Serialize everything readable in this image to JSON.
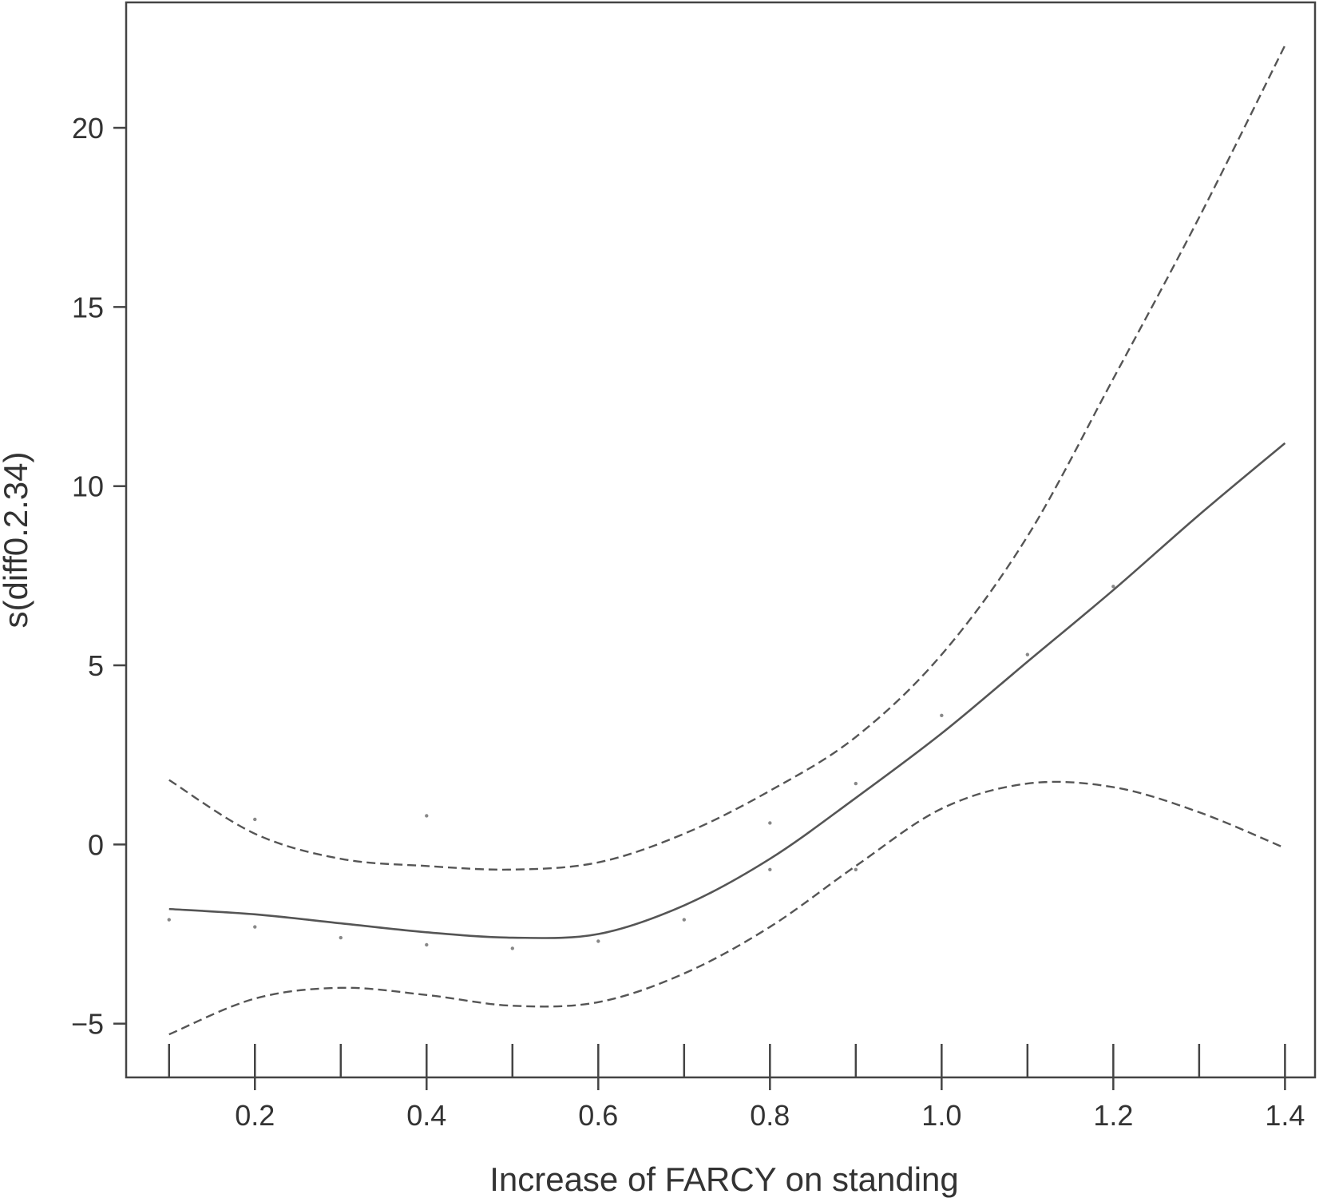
{
  "chart_data": {
    "type": "line",
    "xlabel": "Increase of FARCY on standing",
    "ylabel": "s(diff0.2.34)",
    "xlim": [
      0.05,
      1.435
    ],
    "ylim": [
      -6.5,
      23.5
    ],
    "x_ticks": [
      0.2,
      0.4,
      0.6,
      0.8,
      1.0,
      1.2,
      1.4
    ],
    "x_tick_labels": [
      "0.2",
      "0.4",
      "0.6",
      "0.8",
      "1.0",
      "1.2",
      "1.4"
    ],
    "y_ticks": [
      -5,
      0,
      5,
      10,
      15,
      20
    ],
    "y_tick_labels": [
      "−5",
      "0",
      "5",
      "10",
      "15",
      "20"
    ],
    "grid": false,
    "rug": [
      0.1,
      0.2,
      0.3,
      0.4,
      0.5,
      0.6,
      0.7,
      0.8,
      0.9,
      1.0,
      1.1,
      1.2,
      1.3,
      1.4
    ],
    "series": [
      {
        "style": "solid",
        "x": [
          0.1,
          0.2,
          0.3,
          0.4,
          0.5,
          0.6,
          0.7,
          0.8,
          0.9,
          1.0,
          1.1,
          1.2,
          1.3,
          1.4
        ],
        "y": [
          -1.8,
          -1.95,
          -2.2,
          -2.45,
          -2.6,
          -2.5,
          -1.7,
          -0.4,
          1.3,
          3.1,
          5.1,
          7.1,
          9.2,
          11.2
        ]
      },
      {
        "style": "dashed",
        "x": [
          0.1,
          0.2,
          0.3,
          0.4,
          0.5,
          0.6,
          0.7,
          0.8,
          0.9,
          1.0,
          1.1,
          1.2,
          1.3,
          1.4
        ],
        "y": [
          1.8,
          0.3,
          -0.4,
          -0.6,
          -0.7,
          -0.5,
          0.3,
          1.5,
          3.0,
          5.3,
          8.6,
          13.0,
          17.5,
          22.3
        ]
      },
      {
        "style": "dashed",
        "x": [
          0.1,
          0.2,
          0.3,
          0.4,
          0.5,
          0.6,
          0.7,
          0.8,
          0.9,
          1.0,
          1.1,
          1.2,
          1.3,
          1.4
        ],
        "y": [
          -5.3,
          -4.3,
          -4.0,
          -4.2,
          -4.5,
          -4.4,
          -3.6,
          -2.3,
          -0.6,
          1.0,
          1.7,
          1.6,
          0.9,
          -0.1
        ]
      }
    ],
    "residual_points": [
      {
        "x": 0.1,
        "y": -2.1
      },
      {
        "x": 0.2,
        "y": -2.3
      },
      {
        "x": 0.2,
        "y": 0.7
      },
      {
        "x": 0.3,
        "y": -2.6
      },
      {
        "x": 0.4,
        "y": -2.8
      },
      {
        "x": 0.4,
        "y": 0.8
      },
      {
        "x": 0.5,
        "y": -2.9
      },
      {
        "x": 0.6,
        "y": -2.7
      },
      {
        "x": 0.7,
        "y": -2.1
      },
      {
        "x": 0.8,
        "y": 0.6
      },
      {
        "x": 0.8,
        "y": -0.7
      },
      {
        "x": 0.9,
        "y": 1.7
      },
      {
        "x": 0.9,
        "y": -0.7
      },
      {
        "x": 1.0,
        "y": 3.6
      },
      {
        "x": 1.1,
        "y": 5.3
      },
      {
        "x": 1.2,
        "y": 7.2
      }
    ]
  }
}
